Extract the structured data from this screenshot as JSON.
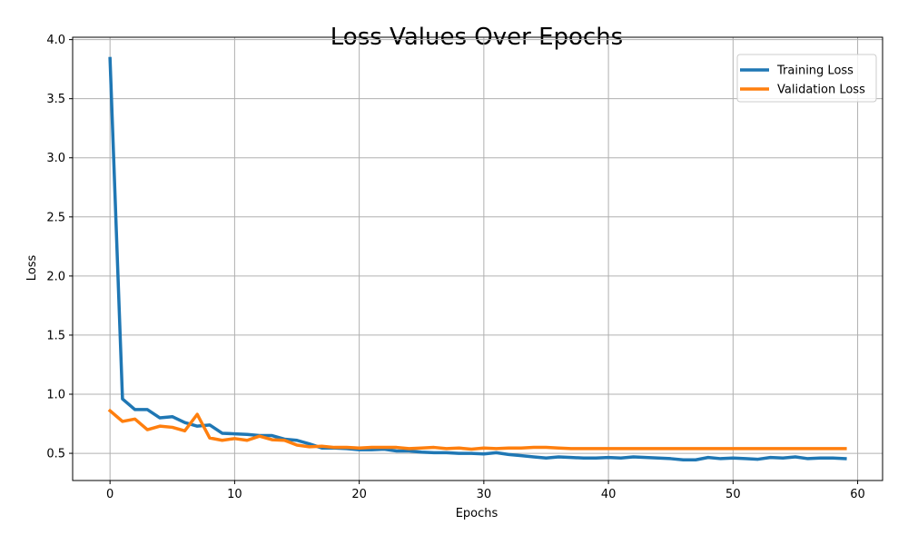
{
  "chart_data": {
    "type": "line",
    "title": "Loss Values Over Epochs",
    "xlabel": "Epochs",
    "ylabel": "Loss",
    "xlim": [
      -3,
      62
    ],
    "ylim": [
      0.27,
      4.02
    ],
    "xticks": [
      0,
      10,
      20,
      30,
      40,
      50,
      60
    ],
    "xtick_labels": [
      "0",
      "10",
      "20",
      "30",
      "40",
      "50",
      "60"
    ],
    "yticks": [
      0.5,
      1.0,
      1.5,
      2.0,
      2.5,
      3.0,
      3.5,
      4.0
    ],
    "ytick_labels": [
      "0.5",
      "1.0",
      "1.5",
      "2.0",
      "2.5",
      "3.0",
      "3.5",
      "4.0"
    ],
    "grid": true,
    "legend_position": "top-right",
    "x": [
      0,
      1,
      2,
      3,
      4,
      5,
      6,
      7,
      8,
      9,
      10,
      11,
      12,
      13,
      14,
      15,
      16,
      17,
      18,
      19,
      20,
      21,
      22,
      23,
      24,
      25,
      26,
      27,
      28,
      29,
      30,
      31,
      32,
      33,
      34,
      35,
      36,
      37,
      38,
      39,
      40,
      41,
      42,
      43,
      44,
      45,
      46,
      47,
      48,
      49,
      50,
      51,
      52,
      53,
      54,
      55,
      56,
      57,
      58,
      59
    ],
    "series": [
      {
        "name": "Training Loss",
        "color": "#1f77b4",
        "values": [
          3.84,
          0.96,
          0.87,
          0.87,
          0.8,
          0.81,
          0.76,
          0.73,
          0.74,
          0.67,
          0.665,
          0.66,
          0.65,
          0.65,
          0.62,
          0.61,
          0.58,
          0.545,
          0.545,
          0.54,
          0.53,
          0.53,
          0.535,
          0.52,
          0.52,
          0.51,
          0.505,
          0.505,
          0.5,
          0.5,
          0.495,
          0.505,
          0.49,
          0.48,
          0.47,
          0.46,
          0.47,
          0.465,
          0.46,
          0.46,
          0.465,
          0.46,
          0.47,
          0.465,
          0.46,
          0.455,
          0.445,
          0.445,
          0.465,
          0.455,
          0.46,
          0.455,
          0.45,
          0.465,
          0.46,
          0.47,
          0.455,
          0.46,
          0.46,
          0.455
        ]
      },
      {
        "name": "Validation Loss",
        "color": "#ff7f0e",
        "values": [
          0.86,
          0.77,
          0.79,
          0.7,
          0.73,
          0.72,
          0.69,
          0.83,
          0.63,
          0.61,
          0.625,
          0.61,
          0.645,
          0.615,
          0.61,
          0.57,
          0.555,
          0.56,
          0.55,
          0.55,
          0.545,
          0.55,
          0.55,
          0.55,
          0.54,
          0.545,
          0.55,
          0.54,
          0.545,
          0.535,
          0.545,
          0.54,
          0.545,
          0.545,
          0.55,
          0.55,
          0.545,
          0.54,
          0.54,
          0.54,
          0.54,
          0.54,
          0.54,
          0.54,
          0.54,
          0.54,
          0.54,
          0.54,
          0.54,
          0.54,
          0.54,
          0.54,
          0.54,
          0.54,
          0.54,
          0.54,
          0.54,
          0.54,
          0.54,
          0.54
        ]
      }
    ]
  }
}
